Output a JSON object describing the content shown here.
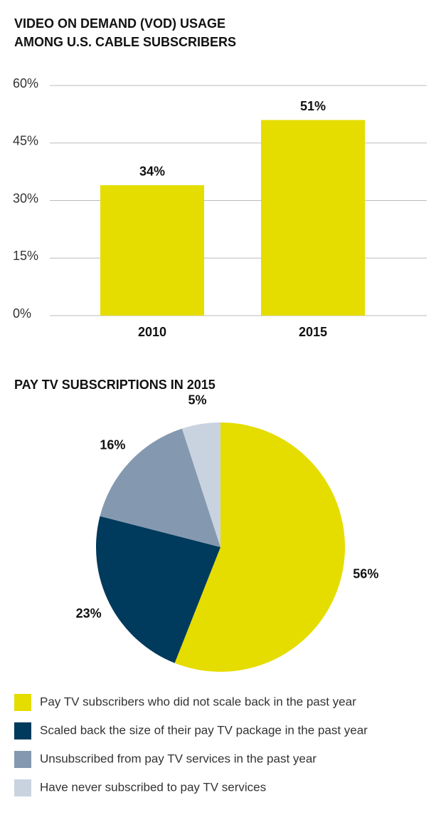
{
  "chart_data": [
    {
      "type": "bar",
      "title": [
        "VIDEO ON DEMAND (VOD) USAGE",
        "AMONG U.S. CABLE SUBSCRIBERS"
      ],
      "categories": [
        "2010",
        "2015"
      ],
      "values": [
        34,
        51
      ],
      "value_labels": [
        "34%",
        "51%"
      ],
      "color": "#e5dc00",
      "ylim": [
        0,
        60
      ],
      "yticks": [
        {
          "value": 0,
          "label": "0%"
        },
        {
          "value": 15,
          "label": "15%"
        },
        {
          "value": 30,
          "label": "30%"
        },
        {
          "value": 45,
          "label": "45%"
        },
        {
          "value": 60,
          "label": "60%"
        }
      ],
      "grid": true
    },
    {
      "type": "pie",
      "title": "PAY TV SUBSCRIPTIONS IN 2015",
      "categories": [
        "Pay TV subscribers who did not scale back in the past year",
        "Scaled back the size of their pay TV package in the past year",
        "Unsubscribed from pay TV services in the past year",
        "Have never subscribed to pay TV services"
      ],
      "values": [
        56,
        23,
        16,
        5
      ],
      "value_labels": [
        "56%",
        "23%",
        "16%",
        "5%"
      ],
      "colors": [
        "#e5dc00",
        "#003a5c",
        "#8499b0",
        "#c9d3e0"
      ]
    }
  ]
}
